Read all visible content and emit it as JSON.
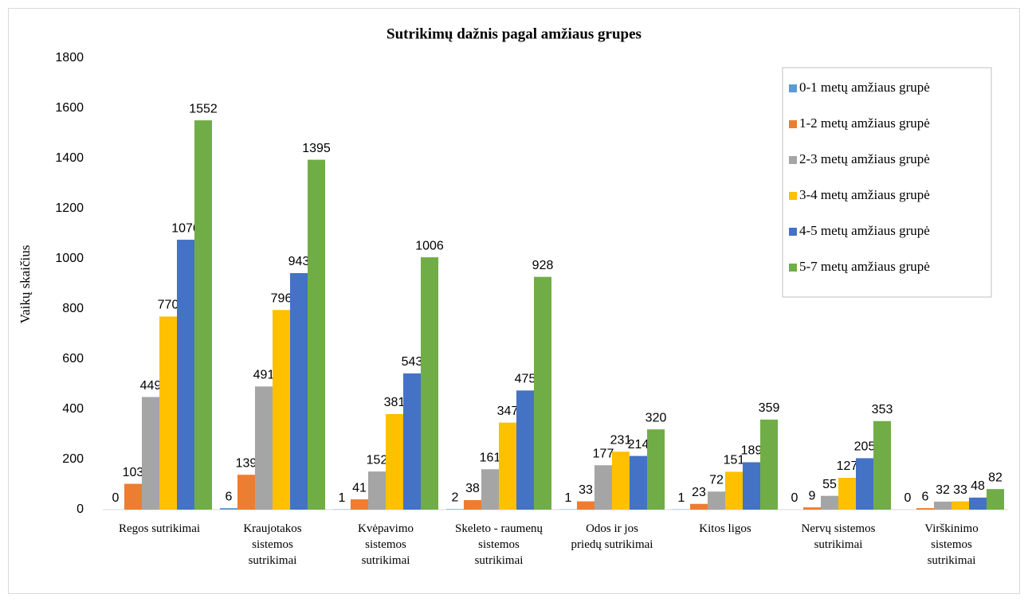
{
  "chart_data": {
    "type": "bar",
    "title": "Sutrikimų dažnis pagal amžiaus grupes",
    "ylabel": "Vaikų skaičius",
    "categories": [
      "Regos sutrikimai",
      "Kraujotakos sistemos sutrikimai",
      "Kvėpavimo sistemos sutrikimai",
      "Skeleto - raumenų sistemos sutrikimai",
      "Odos ir jos priedų sutrikimai",
      "Kitos ligos",
      "Nervų sistemos sutrikimai",
      "Virškinimo sistemos sutrikimai"
    ],
    "series": [
      {
        "name": "0-1 metų amžiaus grupė",
        "color": "#5b9bd5",
        "values": [
          0,
          6,
          1,
          2,
          1,
          1,
          0,
          0
        ]
      },
      {
        "name": "1-2 metų amžiaus grupė",
        "color": "#ed7d31",
        "values": [
          103,
          139,
          41,
          38,
          33,
          23,
          9,
          6
        ]
      },
      {
        "name": "2-3 metų amžiaus grupė",
        "color": "#a5a5a5",
        "values": [
          449,
          491,
          152,
          161,
          177,
          72,
          55,
          32
        ]
      },
      {
        "name": "3-4 metų amžiaus grupė",
        "color": "#ffc000",
        "values": [
          770,
          796,
          381,
          347,
          231,
          151,
          127,
          33
        ]
      },
      {
        "name": "4-5 metų amžiaus grupė",
        "color": "#4472c4",
        "values": [
          1076,
          943,
          543,
          475,
          214,
          189,
          205,
          48
        ]
      },
      {
        "name": "5-7 metų amžiaus grupė",
        "color": "#70ad47",
        "values": [
          1552,
          1395,
          1006,
          928,
          320,
          359,
          353,
          82
        ]
      }
    ],
    "ylim": [
      0,
      1800
    ],
    "yticks": [
      0,
      200,
      400,
      600,
      800,
      1000,
      1200,
      1400,
      1600,
      1800
    ],
    "grid": false,
    "legend": "top-right"
  }
}
